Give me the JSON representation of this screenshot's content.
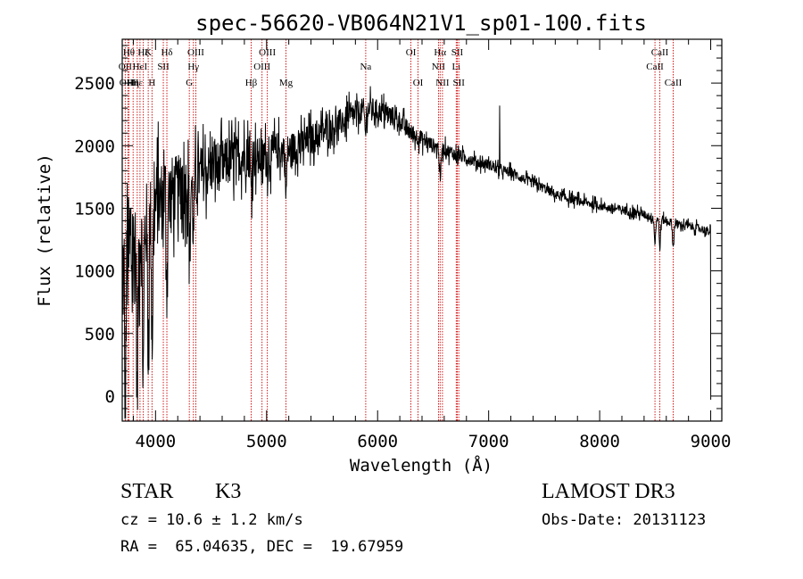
{
  "chart_data": {
    "type": "line",
    "title": "spec-56620-VB064N21V1_sp01-100.fits",
    "xlabel": "Wavelength (Å)",
    "ylabel": "Flux (relative)",
    "xlim": [
      3700,
      9100
    ],
    "ylim": [
      -200,
      2850
    ],
    "xticks": [
      4000,
      5000,
      6000,
      7000,
      8000,
      9000
    ],
    "yticks": [
      0,
      500,
      1000,
      1500,
      2000,
      2500
    ],
    "grid": false,
    "continuum": [
      [
        3700,
        1000
      ],
      [
        3800,
        1150
      ],
      [
        3900,
        1350
      ],
      [
        4000,
        1520
      ],
      [
        4100,
        1600
      ],
      [
        4200,
        1650
      ],
      [
        4300,
        1700
      ],
      [
        4400,
        1760
      ],
      [
        4500,
        1820
      ],
      [
        4600,
        1850
      ],
      [
        4700,
        1880
      ],
      [
        4800,
        1930
      ],
      [
        4900,
        1900
      ],
      [
        5000,
        1900
      ],
      [
        5100,
        1960
      ],
      [
        5200,
        1960
      ],
      [
        5300,
        2000
      ],
      [
        5400,
        2050
      ],
      [
        5500,
        2100
      ],
      [
        5600,
        2150
      ],
      [
        5700,
        2200
      ],
      [
        5800,
        2250
      ],
      [
        5900,
        2300
      ],
      [
        6000,
        2280
      ],
      [
        6100,
        2250
      ],
      [
        6200,
        2200
      ],
      [
        6300,
        2100
      ],
      [
        6400,
        2050
      ],
      [
        6500,
        2000
      ],
      [
        6600,
        1970
      ],
      [
        6700,
        1930
      ],
      [
        6800,
        1900
      ],
      [
        6900,
        1870
      ],
      [
        7000,
        1850
      ],
      [
        7100,
        1800
      ],
      [
        7200,
        1790
      ],
      [
        7300,
        1740
      ],
      [
        7400,
        1700
      ],
      [
        7500,
        1660
      ],
      [
        7600,
        1610
      ],
      [
        7700,
        1580
      ],
      [
        7800,
        1560
      ],
      [
        7900,
        1540
      ],
      [
        8000,
        1520
      ],
      [
        8100,
        1500
      ],
      [
        8200,
        1490
      ],
      [
        8300,
        1470
      ],
      [
        8400,
        1450
      ],
      [
        8500,
        1420
      ],
      [
        8600,
        1400
      ],
      [
        8700,
        1370
      ],
      [
        8800,
        1360
      ],
      [
        8900,
        1340
      ],
      [
        9000,
        1310
      ]
    ],
    "noise_amplitude": [
      [
        3700,
        900
      ],
      [
        3900,
        650
      ],
      [
        4300,
        400
      ],
      [
        4800,
        300
      ],
      [
        5500,
        200
      ],
      [
        6000,
        150
      ],
      [
        6500,
        100
      ],
      [
        7000,
        70
      ],
      [
        8000,
        60
      ],
      [
        9000,
        55
      ]
    ],
    "features": [
      {
        "wavelength": 3727,
        "depth": 1200
      },
      {
        "wavelength": 3835,
        "depth": 1300
      },
      {
        "wavelength": 3889,
        "depth": 1200
      },
      {
        "wavelength": 3934,
        "depth": 1000
      },
      {
        "wavelength": 3970,
        "depth": 1000
      },
      {
        "wavelength": 4102,
        "depth": 700
      },
      {
        "wavelength": 4308,
        "depth": 550
      },
      {
        "wavelength": 4341,
        "depth": 450
      },
      {
        "wavelength": 4861,
        "depth": 250
      },
      {
        "wavelength": 5175,
        "depth": 350
      },
      {
        "wavelength": 5890,
        "depth": 200
      },
      {
        "wavelength": 6563,
        "depth": 300
      },
      {
        "wavelength": 8498,
        "depth": 200
      },
      {
        "wavelength": 8542,
        "depth": 220
      },
      {
        "wavelength": 8662,
        "depth": 200
      }
    ],
    "emission_spikes": [
      {
        "wavelength": 7100,
        "value": 2320
      }
    ],
    "end_drop": [
      {
        "wavelength": 9000,
        "value": -30
      }
    ],
    "line_markers": [
      {
        "wavelength": 3727,
        "label": "OII",
        "row": 1
      },
      {
        "wavelength": 3750,
        "label": "OIII",
        "row": 2
      },
      {
        "wavelength": 3760,
        "label": "Hθ",
        "row": 0
      },
      {
        "wavelength": 3798,
        "label": "Hη",
        "row": 2
      },
      {
        "wavelength": 3835,
        "label": "Hε",
        "row": 2
      },
      {
        "wavelength": 3860,
        "label": "HeI",
        "row": 1
      },
      {
        "wavelength": 3890,
        "label": "Hζ",
        "row": 0
      },
      {
        "wavelength": 3934,
        "label": "K",
        "row": 0
      },
      {
        "wavelength": 3968,
        "label": "H",
        "row": 2
      },
      {
        "wavelength": 4070,
        "label": "SII",
        "row": 1
      },
      {
        "wavelength": 4102,
        "label": "Hδ",
        "row": 0
      },
      {
        "wavelength": 4304,
        "label": "G",
        "row": 2
      },
      {
        "wavelength": 4341,
        "label": "Hγ",
        "row": 1
      },
      {
        "wavelength": 4363,
        "label": "OIII",
        "row": 0
      },
      {
        "wavelength": 4861,
        "label": "Hβ",
        "row": 2
      },
      {
        "wavelength": 4959,
        "label": "OIII",
        "row": 1
      },
      {
        "wavelength": 5007,
        "label": "OIII",
        "row": 0
      },
      {
        "wavelength": 5175,
        "label": "Mg",
        "row": 2
      },
      {
        "wavelength": 5893,
        "label": "Na",
        "row": 1
      },
      {
        "wavelength": 6300,
        "label": "OI",
        "row": 0
      },
      {
        "wavelength": 6364,
        "label": "OI",
        "row": 2
      },
      {
        "wavelength": 6548,
        "label": "NII",
        "row": 1
      },
      {
        "wavelength": 6563,
        "label": "Hα",
        "row": 0
      },
      {
        "wavelength": 6584,
        "label": "NII",
        "row": 2
      },
      {
        "wavelength": 6708,
        "label": "Li",
        "row": 1
      },
      {
        "wavelength": 6717,
        "label": "SII",
        "row": 0
      },
      {
        "wavelength": 6731,
        "label": "SII",
        "row": 2
      },
      {
        "wavelength": 8498,
        "label": "CaII",
        "row": 1
      },
      {
        "wavelength": 8542,
        "label": "CaII",
        "row": 0
      },
      {
        "wavelength": 8662,
        "label": "CaII",
        "row": 2
      }
    ],
    "line_color": "#000000",
    "marker_color": "#cc0000"
  },
  "footer": {
    "object_class": "STAR",
    "subclass": "K3",
    "survey": "LAMOST DR3",
    "redshift_text": "cz = 10.6 ± 1.2 km/s",
    "obs_date": "Obs-Date: 20131123",
    "coords": "RA =  65.04635, DEC =  19.67959"
  }
}
